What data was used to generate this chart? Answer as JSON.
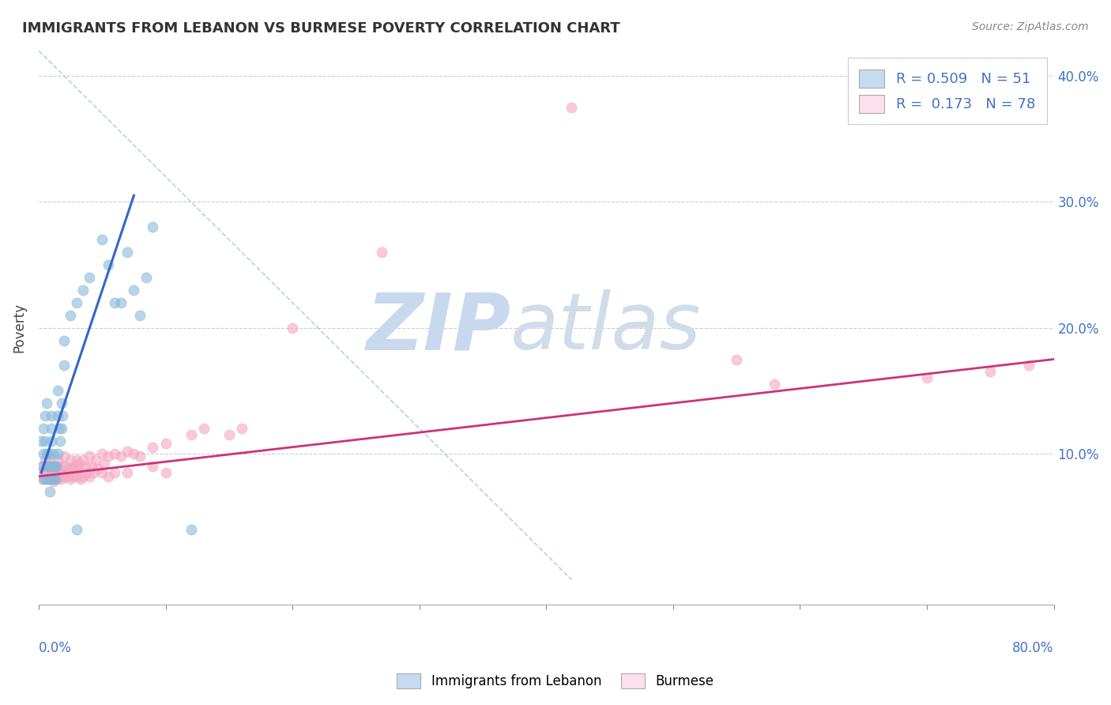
{
  "title": "IMMIGRANTS FROM LEBANON VS BURMESE POVERTY CORRELATION CHART",
  "source": "Source: ZipAtlas.com",
  "ylabel": "Poverty",
  "legend_labels": [
    "Immigrants from Lebanon",
    "Burmese"
  ],
  "blue_R": 0.509,
  "blue_N": 51,
  "pink_R": 0.173,
  "pink_N": 78,
  "blue_color": "#89b8d8",
  "pink_color": "#f4a8c0",
  "blue_fill": "#c6dbef",
  "pink_fill": "#fce0eb",
  "blue_line_color": "#3366cc",
  "pink_line_color": "#cc3377",
  "diag_color": "#aac4e0",
  "xlim": [
    0.0,
    0.8
  ],
  "ylim": [
    -0.02,
    0.42
  ],
  "blue_scatter_x": [
    0.002,
    0.003,
    0.003,
    0.004,
    0.004,
    0.005,
    0.005,
    0.006,
    0.006,
    0.007,
    0.007,
    0.008,
    0.008,
    0.009,
    0.009,
    0.01,
    0.01,
    0.01,
    0.01,
    0.01,
    0.011,
    0.012,
    0.012,
    0.013,
    0.013,
    0.014,
    0.015,
    0.015,
    0.015,
    0.016,
    0.017,
    0.018,
    0.018,
    0.019,
    0.02,
    0.02,
    0.025,
    0.03,
    0.03,
    0.035,
    0.04,
    0.05,
    0.055,
    0.06,
    0.065,
    0.07,
    0.075,
    0.08,
    0.085,
    0.09,
    0.12
  ],
  "blue_scatter_y": [
    0.11,
    0.09,
    0.08,
    0.12,
    0.1,
    0.13,
    0.11,
    0.14,
    0.1,
    0.09,
    0.08,
    0.1,
    0.09,
    0.08,
    0.07,
    0.13,
    0.12,
    0.11,
    0.09,
    0.08,
    0.1,
    0.09,
    0.08,
    0.09,
    0.08,
    0.09,
    0.15,
    0.13,
    0.1,
    0.12,
    0.11,
    0.14,
    0.12,
    0.13,
    0.19,
    0.17,
    0.21,
    0.22,
    0.04,
    0.23,
    0.24,
    0.27,
    0.25,
    0.22,
    0.22,
    0.26,
    0.23,
    0.21,
    0.24,
    0.28,
    0.04
  ],
  "pink_scatter_x": [
    0.002,
    0.003,
    0.004,
    0.005,
    0.005,
    0.006,
    0.007,
    0.007,
    0.008,
    0.009,
    0.01,
    0.01,
    0.011,
    0.012,
    0.012,
    0.013,
    0.014,
    0.015,
    0.015,
    0.016,
    0.017,
    0.018,
    0.018,
    0.019,
    0.02,
    0.02,
    0.021,
    0.022,
    0.023,
    0.024,
    0.025,
    0.025,
    0.026,
    0.027,
    0.028,
    0.03,
    0.03,
    0.031,
    0.032,
    0.033,
    0.035,
    0.035,
    0.037,
    0.038,
    0.04,
    0.04,
    0.042,
    0.043,
    0.045,
    0.047,
    0.05,
    0.05,
    0.052,
    0.055,
    0.055,
    0.06,
    0.06,
    0.065,
    0.07,
    0.07,
    0.075,
    0.08,
    0.09,
    0.09,
    0.1,
    0.1,
    0.12,
    0.13,
    0.15,
    0.16,
    0.2,
    0.27,
    0.42,
    0.58,
    0.7,
    0.75,
    0.78,
    0.55
  ],
  "pink_scatter_y": [
    0.085,
    0.09,
    0.08,
    0.095,
    0.08,
    0.085,
    0.09,
    0.08,
    0.088,
    0.082,
    0.092,
    0.082,
    0.088,
    0.085,
    0.078,
    0.088,
    0.082,
    0.095,
    0.08,
    0.088,
    0.082,
    0.09,
    0.08,
    0.085,
    0.098,
    0.082,
    0.09,
    0.085,
    0.082,
    0.088,
    0.095,
    0.08,
    0.088,
    0.082,
    0.09,
    0.095,
    0.082,
    0.088,
    0.092,
    0.08,
    0.095,
    0.082,
    0.09,
    0.085,
    0.098,
    0.082,
    0.09,
    0.085,
    0.095,
    0.088,
    0.1,
    0.085,
    0.092,
    0.098,
    0.082,
    0.1,
    0.085,
    0.098,
    0.102,
    0.085,
    0.1,
    0.098,
    0.105,
    0.09,
    0.108,
    0.085,
    0.115,
    0.12,
    0.115,
    0.12,
    0.2,
    0.26,
    0.375,
    0.155,
    0.16,
    0.165,
    0.17,
    0.175
  ],
  "blue_line_x": [
    0.002,
    0.075
  ],
  "blue_line_y": [
    0.085,
    0.305
  ],
  "pink_line_x": [
    0.0,
    0.8
  ],
  "pink_line_y": [
    0.082,
    0.175
  ],
  "diag_line_x": [
    0.0,
    0.42
  ],
  "diag_line_y": [
    0.42,
    0.0
  ],
  "yticks": [
    0.1,
    0.2,
    0.3,
    0.4
  ],
  "ytick_labels": [
    "10.0%",
    "20.0%",
    "30.0%",
    "40.0%"
  ],
  "xtick_start_label": "0.0%",
  "xtick_end_label": "80.0%"
}
